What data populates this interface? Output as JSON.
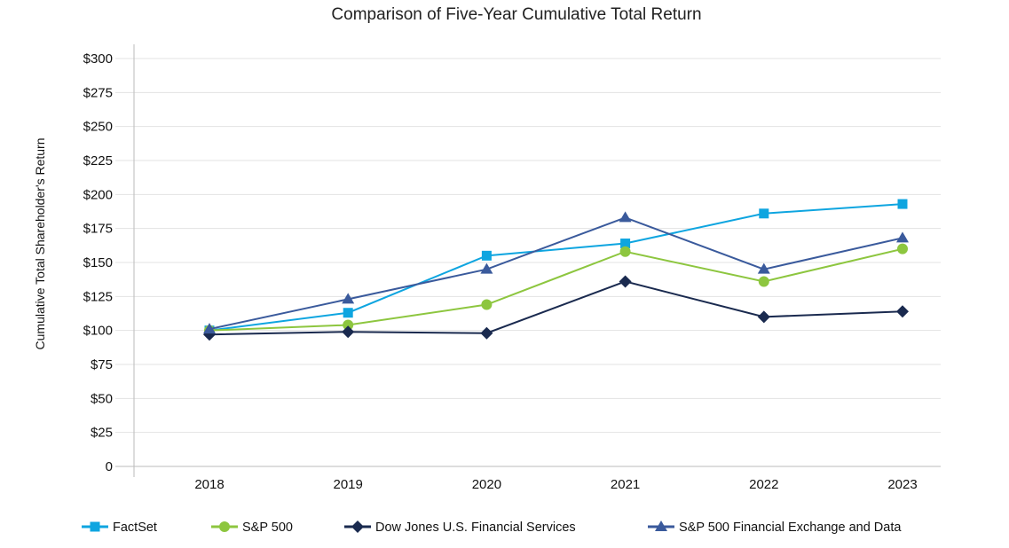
{
  "chart_data": {
    "type": "line",
    "title": "Comparison of Five-Year Cumulative Total Return",
    "xlabel": "",
    "ylabel": "Cumulative Total Shareholder's Return",
    "categories": [
      "2018",
      "2019",
      "2020",
      "2021",
      "2022",
      "2023"
    ],
    "ylim": [
      0,
      300
    ],
    "yticks": [
      0,
      25,
      50,
      75,
      100,
      125,
      150,
      175,
      200,
      225,
      250,
      275,
      300
    ],
    "ytick_labels": [
      "0",
      "$25",
      "$50",
      "$75",
      "$100",
      "$125",
      "$150",
      "$175",
      "$200",
      "$225",
      "$250",
      "$275",
      "$300"
    ],
    "grid": true,
    "legend_position": "bottom",
    "series": [
      {
        "name": "FactSet",
        "color": "#0ea5e0",
        "marker": "square",
        "values": [
          100,
          113,
          155,
          164,
          186,
          193
        ]
      },
      {
        "name": "S&P 500",
        "color": "#8dc63f",
        "marker": "circle",
        "values": [
          100,
          104,
          119,
          158,
          136,
          160
        ]
      },
      {
        "name": "Dow Jones U.S. Financial Services",
        "color": "#1a2a4f",
        "marker": "diamond",
        "values": [
          97,
          99,
          98,
          136,
          110,
          114
        ]
      },
      {
        "name": "S&P 500 Financial Exchange and Data",
        "color": "#3a5a9c",
        "marker": "triangle",
        "values": [
          101,
          123,
          145,
          183,
          145,
          168
        ]
      }
    ]
  }
}
